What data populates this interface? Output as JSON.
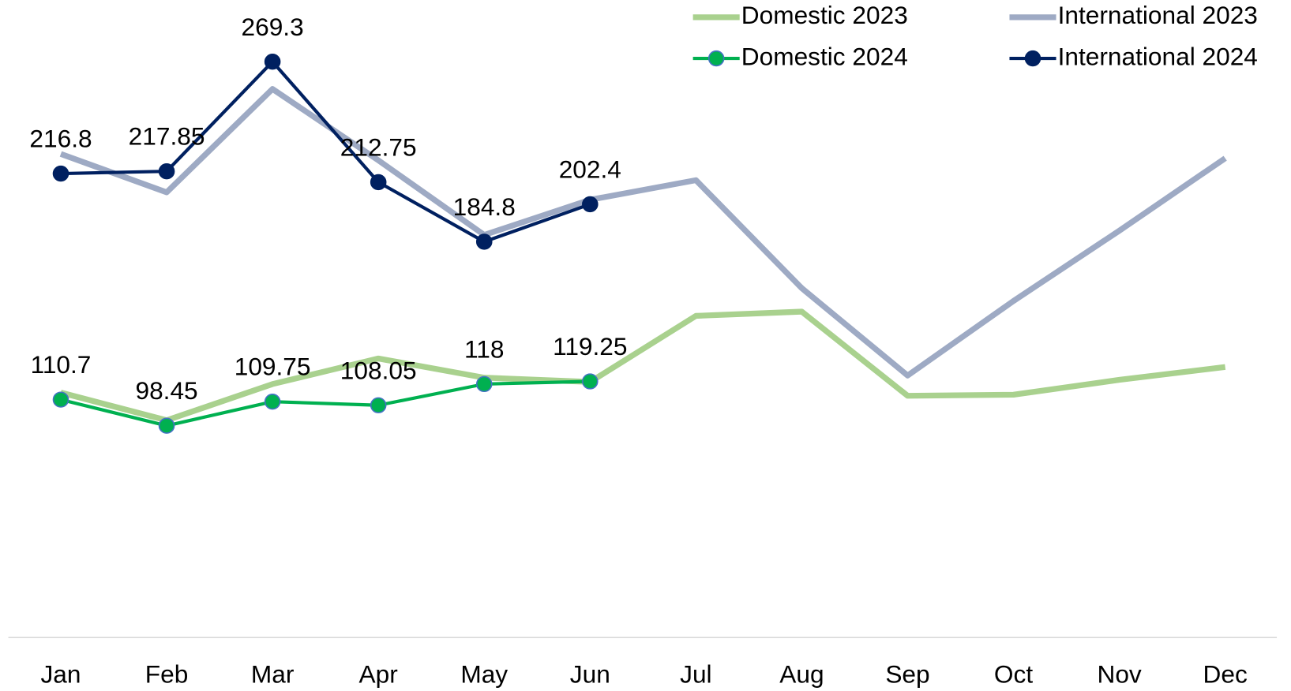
{
  "chart_data": {
    "type": "line",
    "categories": [
      "Jan",
      "Feb",
      "Mar",
      "Apr",
      "May",
      "Jun",
      "Jul",
      "Aug",
      "Sep",
      "Oct",
      "Nov",
      "Dec"
    ],
    "ylim": [
      0,
      300
    ],
    "legend": "top-right",
    "series": [
      {
        "name": "Domestic 2023",
        "color": "#a9d18e",
        "markers": false,
        "values": [
          114,
          101,
          118,
          130,
          121,
          119,
          150,
          152,
          112.5,
          113,
          120,
          126
        ]
      },
      {
        "name": "International 2023",
        "color": "#9eaac4",
        "markers": false,
        "values": [
          226,
          208,
          256.5,
          223,
          188,
          204.5,
          213.7,
          163,
          122,
          157,
          190,
          224
        ]
      },
      {
        "name": "Domestic 2024",
        "color": "#00b050",
        "markers": true,
        "labels": true,
        "values": [
          110.7,
          98.45,
          109.75,
          108.05,
          118,
          119.25,
          null,
          null,
          null,
          null,
          null,
          null
        ]
      },
      {
        "name": "International 2024",
        "color": "#002060",
        "markers": true,
        "labels": true,
        "values": [
          216.8,
          217.85,
          269.3,
          212.75,
          184.8,
          202.4,
          null,
          null,
          null,
          null,
          null,
          null
        ]
      }
    ]
  }
}
